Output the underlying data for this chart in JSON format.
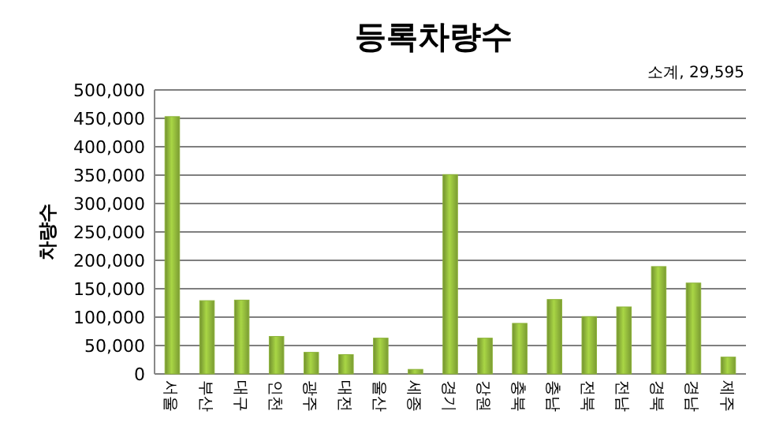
{
  "chart_data": {
    "type": "bar",
    "title": "등록차량수",
    "ylabel": "차량수",
    "categories": [
      "서울",
      "부산",
      "대구",
      "인천",
      "광주",
      "대전",
      "울산",
      "세종",
      "경기",
      "강원",
      "충북",
      "충남",
      "전북",
      "전남",
      "경북",
      "경남",
      "제주"
    ],
    "values": [
      453000,
      129000,
      130000,
      66000,
      38000,
      34000,
      63000,
      8000,
      351000,
      63000,
      89000,
      131000,
      101000,
      118000,
      189000,
      160000,
      29595
    ],
    "color": "#8db33a",
    "ylim": [
      0,
      500000
    ],
    "yticks": [
      0,
      {
        "value": 50000,
        "label": "50,000"
      },
      {
        "value": 100000,
        "label": "100,000"
      },
      {
        "value": 150000,
        "label": "150,000"
      },
      {
        "value": 200000,
        "label": "200,000"
      },
      {
        "value": 250000,
        "label": "250,000"
      },
      {
        "value": 300000,
        "label": "300,000"
      },
      {
        "value": 350000,
        "label": "350,000"
      },
      {
        "value": 400000,
        "label": "400,000"
      },
      {
        "value": 450000,
        "label": "450,000"
      },
      {
        "value": 500000,
        "label": "500,000"
      }
    ],
    "grid": "y",
    "annotations": [
      "소계, 29,595"
    ]
  }
}
